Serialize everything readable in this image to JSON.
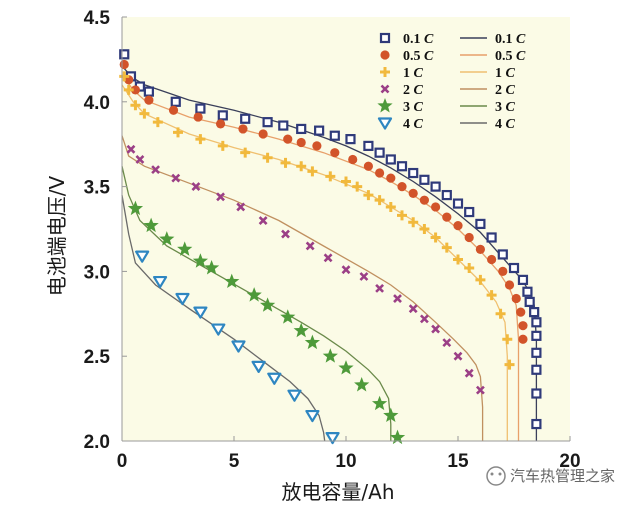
{
  "chart_data": {
    "type": "line",
    "xlabel": "放电容量/Ah",
    "ylabel": "电池端电压/V",
    "xlim": [
      0,
      20
    ],
    "ylim": [
      2.0,
      4.5
    ],
    "xticks": [
      0,
      5,
      10,
      15,
      20
    ],
    "yticks": [
      "2.0",
      "2.5",
      "3.0",
      "3.5",
      "4.0",
      "4.5"
    ],
    "legend_position": "top-right",
    "plot_background": "#fbfbe6",
    "series": [
      {
        "name": "0.1",
        "name_unit": "C",
        "marker": "square",
        "color": "#2f3a7a",
        "line_color": "#3a3f5a",
        "points": [
          [
            0.1,
            4.28
          ],
          [
            0.4,
            4.15
          ],
          [
            0.8,
            4.09
          ],
          [
            1.2,
            4.06
          ],
          [
            2.4,
            4.0
          ],
          [
            3.5,
            3.96
          ],
          [
            4.5,
            3.92
          ],
          [
            5.5,
            3.9
          ],
          [
            6.5,
            3.88
          ],
          [
            7.2,
            3.86
          ],
          [
            8.0,
            3.84
          ],
          [
            8.8,
            3.83
          ],
          [
            9.5,
            3.8
          ],
          [
            10.2,
            3.78
          ],
          [
            11.0,
            3.74
          ],
          [
            11.5,
            3.7
          ],
          [
            12.0,
            3.66
          ],
          [
            12.5,
            3.62
          ],
          [
            13.0,
            3.58
          ],
          [
            13.5,
            3.54
          ],
          [
            14.0,
            3.5
          ],
          [
            14.5,
            3.45
          ],
          [
            15.0,
            3.4
          ],
          [
            15.5,
            3.35
          ],
          [
            16.0,
            3.28
          ],
          [
            16.5,
            3.2
          ],
          [
            17.0,
            3.1
          ],
          [
            17.5,
            3.02
          ],
          [
            17.9,
            2.95
          ],
          [
            18.1,
            2.88
          ],
          [
            18.2,
            2.82
          ],
          [
            18.4,
            2.76
          ],
          [
            18.5,
            2.7
          ],
          [
            18.5,
            2.62
          ],
          [
            18.5,
            2.52
          ],
          [
            18.5,
            2.42
          ],
          [
            18.5,
            2.28
          ],
          [
            18.5,
            2.1
          ]
        ],
        "line": [
          [
            0,
            4.21
          ],
          [
            0.5,
            4.14
          ],
          [
            1,
            4.1
          ],
          [
            3,
            4.01
          ],
          [
            5,
            3.95
          ],
          [
            7,
            3.88
          ],
          [
            9,
            3.79
          ],
          [
            10,
            3.74
          ],
          [
            11,
            3.68
          ],
          [
            12,
            3.61
          ],
          [
            13,
            3.53
          ],
          [
            14,
            3.44
          ],
          [
            15,
            3.34
          ],
          [
            16,
            3.23
          ],
          [
            17,
            3.08
          ],
          [
            17.8,
            2.96
          ],
          [
            18.2,
            2.88
          ],
          [
            18.4,
            2.8
          ],
          [
            18.5,
            2.6
          ],
          [
            18.5,
            2.0
          ]
        ]
      },
      {
        "name": "0.5",
        "name_unit": "C",
        "marker": "circle",
        "color": "#d2542a",
        "line_color": "#e8a06a",
        "points": [
          [
            0.1,
            4.22
          ],
          [
            0.3,
            4.13
          ],
          [
            0.6,
            4.07
          ],
          [
            1.2,
            4.01
          ],
          [
            2.3,
            3.95
          ],
          [
            3.4,
            3.91
          ],
          [
            4.4,
            3.87
          ],
          [
            5.4,
            3.84
          ],
          [
            6.3,
            3.81
          ],
          [
            7.4,
            3.78
          ],
          [
            8.0,
            3.76
          ],
          [
            8.7,
            3.74
          ],
          [
            9.5,
            3.7
          ],
          [
            10.3,
            3.66
          ],
          [
            11.0,
            3.62
          ],
          [
            11.5,
            3.58
          ],
          [
            12.0,
            3.55
          ],
          [
            12.5,
            3.5
          ],
          [
            13.0,
            3.46
          ],
          [
            13.5,
            3.42
          ],
          [
            14.0,
            3.38
          ],
          [
            14.5,
            3.32
          ],
          [
            15.0,
            3.27
          ],
          [
            15.5,
            3.2
          ],
          [
            16.0,
            3.13
          ],
          [
            16.5,
            3.07
          ],
          [
            17.0,
            3.0
          ],
          [
            17.3,
            2.92
          ],
          [
            17.6,
            2.84
          ],
          [
            17.8,
            2.76
          ],
          [
            17.9,
            2.68
          ],
          [
            17.9,
            2.6
          ]
        ],
        "line": [
          [
            0,
            4.16
          ],
          [
            0.5,
            4.07
          ],
          [
            1,
            4.01
          ],
          [
            3,
            3.91
          ],
          [
            5,
            3.85
          ],
          [
            7,
            3.78
          ],
          [
            9,
            3.7
          ],
          [
            11,
            3.6
          ],
          [
            12,
            3.53
          ],
          [
            13,
            3.45
          ],
          [
            14,
            3.36
          ],
          [
            15,
            3.25
          ],
          [
            16,
            3.12
          ],
          [
            16.8,
            3.0
          ],
          [
            17.3,
            2.9
          ],
          [
            17.6,
            2.8
          ],
          [
            17.7,
            2.6
          ],
          [
            17.7,
            2.0
          ]
        ]
      },
      {
        "name": "1",
        "name_unit": "C",
        "marker": "cross",
        "color": "#f1b93d",
        "line_color": "#f0c070",
        "points": [
          [
            0.1,
            4.15
          ],
          [
            0.3,
            4.07
          ],
          [
            0.6,
            3.98
          ],
          [
            1.0,
            3.93
          ],
          [
            1.6,
            3.88
          ],
          [
            2.5,
            3.82
          ],
          [
            3.5,
            3.78
          ],
          [
            4.5,
            3.74
          ],
          [
            5.5,
            3.7
          ],
          [
            6.5,
            3.67
          ],
          [
            7.3,
            3.64
          ],
          [
            8.0,
            3.62
          ],
          [
            8.5,
            3.59
          ],
          [
            9.3,
            3.56
          ],
          [
            10.0,
            3.53
          ],
          [
            10.5,
            3.5
          ],
          [
            11.0,
            3.45
          ],
          [
            11.5,
            3.42
          ],
          [
            12.0,
            3.38
          ],
          [
            12.5,
            3.33
          ],
          [
            13.0,
            3.29
          ],
          [
            13.5,
            3.25
          ],
          [
            14.0,
            3.2
          ],
          [
            14.5,
            3.14
          ],
          [
            15.0,
            3.07
          ],
          [
            15.5,
            3.02
          ],
          [
            16.0,
            2.95
          ],
          [
            16.5,
            2.86
          ],
          [
            16.9,
            2.75
          ],
          [
            17.2,
            2.6
          ],
          [
            17.3,
            2.45
          ]
        ],
        "line": [
          [
            0,
            4.1
          ],
          [
            0.5,
            4.0
          ],
          [
            1,
            3.93
          ],
          [
            3,
            3.81
          ],
          [
            5,
            3.73
          ],
          [
            7,
            3.66
          ],
          [
            9,
            3.57
          ],
          [
            11,
            3.46
          ],
          [
            12,
            3.38
          ],
          [
            13,
            3.3
          ],
          [
            14,
            3.2
          ],
          [
            15,
            3.07
          ],
          [
            16,
            2.94
          ],
          [
            16.7,
            2.82
          ],
          [
            17.1,
            2.7
          ],
          [
            17.2,
            2.5
          ],
          [
            17.2,
            2.0
          ]
        ]
      },
      {
        "name": "2",
        "name_unit": "C",
        "marker": "x",
        "color": "#9b3f86",
        "line_color": "#c09060",
        "points": [
          [
            0.4,
            3.72
          ],
          [
            0.8,
            3.66
          ],
          [
            1.5,
            3.6
          ],
          [
            2.4,
            3.55
          ],
          [
            3.3,
            3.5
          ],
          [
            4.4,
            3.44
          ],
          [
            5.3,
            3.38
          ],
          [
            6.3,
            3.3
          ],
          [
            7.3,
            3.22
          ],
          [
            8.4,
            3.15
          ],
          [
            9.2,
            3.08
          ],
          [
            10.0,
            3.01
          ],
          [
            10.8,
            2.97
          ],
          [
            11.5,
            2.9
          ],
          [
            12.3,
            2.84
          ],
          [
            13.0,
            2.78
          ],
          [
            13.5,
            2.72
          ],
          [
            14.0,
            2.66
          ],
          [
            14.5,
            2.58
          ],
          [
            15.0,
            2.5
          ],
          [
            15.5,
            2.4
          ],
          [
            16.0,
            2.3
          ]
        ],
        "line": [
          [
            0,
            3.8
          ],
          [
            0.3,
            3.68
          ],
          [
            1,
            3.62
          ],
          [
            3,
            3.52
          ],
          [
            5,
            3.42
          ],
          [
            7,
            3.3
          ],
          [
            9,
            3.15
          ],
          [
            11,
            3.0
          ],
          [
            12,
            2.92
          ],
          [
            13,
            2.82
          ],
          [
            14,
            2.7
          ],
          [
            14.8,
            2.6
          ],
          [
            15.4,
            2.52
          ],
          [
            15.8,
            2.45
          ],
          [
            16.0,
            2.38
          ],
          [
            16.1,
            2.2
          ],
          [
            16.1,
            2.0
          ]
        ]
      },
      {
        "name": "3",
        "name_unit": "C",
        "marker": "star",
        "color": "#4e9a3a",
        "line_color": "#6a8a4a",
        "points": [
          [
            0.6,
            3.37
          ],
          [
            1.3,
            3.27
          ],
          [
            2.0,
            3.19
          ],
          [
            2.8,
            3.13
          ],
          [
            3.5,
            3.06
          ],
          [
            4.0,
            3.02
          ],
          [
            4.9,
            2.94
          ],
          [
            5.9,
            2.86
          ],
          [
            6.5,
            2.8
          ],
          [
            7.4,
            2.73
          ],
          [
            8.0,
            2.65
          ],
          [
            8.5,
            2.58
          ],
          [
            9.3,
            2.5
          ],
          [
            10.0,
            2.43
          ],
          [
            10.7,
            2.33
          ],
          [
            11.5,
            2.22
          ],
          [
            12.0,
            2.15
          ],
          [
            12.3,
            2.02
          ]
        ],
        "line": [
          [
            0,
            3.62
          ],
          [
            0.3,
            3.45
          ],
          [
            0.8,
            3.3
          ],
          [
            2,
            3.15
          ],
          [
            4,
            3.0
          ],
          [
            6,
            2.85
          ],
          [
            8,
            2.7
          ],
          [
            9,
            2.62
          ],
          [
            10,
            2.53
          ],
          [
            11,
            2.42
          ],
          [
            11.5,
            2.35
          ],
          [
            11.9,
            2.25
          ],
          [
            12.0,
            2.1
          ],
          [
            12.0,
            2.0
          ]
        ]
      },
      {
        "name": "4",
        "name_unit": "C",
        "marker": "triangle-down",
        "color": "#2e86c1",
        "line_color": "#6a6a6a",
        "points": [
          [
            0.9,
            3.09
          ],
          [
            1.7,
            2.94
          ],
          [
            2.7,
            2.84
          ],
          [
            3.5,
            2.76
          ],
          [
            4.3,
            2.66
          ],
          [
            5.2,
            2.56
          ],
          [
            6.1,
            2.44
          ],
          [
            6.8,
            2.37
          ],
          [
            7.7,
            2.27
          ],
          [
            8.5,
            2.15
          ],
          [
            9.4,
            2.02
          ]
        ],
        "line": [
          [
            0,
            3.45
          ],
          [
            0.3,
            3.22
          ],
          [
            0.6,
            3.05
          ],
          [
            1.5,
            2.92
          ],
          [
            3,
            2.78
          ],
          [
            5,
            2.6
          ],
          [
            6.5,
            2.45
          ],
          [
            7.5,
            2.35
          ],
          [
            8.3,
            2.25
          ],
          [
            8.8,
            2.15
          ],
          [
            9.0,
            2.05
          ],
          [
            9.05,
            2.0
          ]
        ]
      }
    ]
  },
  "watermark": {
    "text": "汽车热管理之家"
  }
}
